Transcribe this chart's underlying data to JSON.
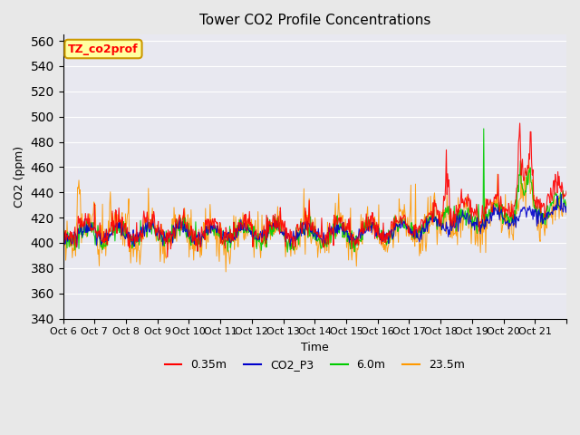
{
  "title": "Tower CO2 Profile Concentrations",
  "xlabel": "Time",
  "ylabel": "CO2 (ppm)",
  "ylim": [
    340,
    565
  ],
  "yticks": [
    340,
    360,
    380,
    400,
    420,
    440,
    460,
    480,
    500,
    520,
    540,
    560
  ],
  "n_days": 16,
  "n_per_day": 48,
  "series_colors": {
    "0.35m": "#ff0000",
    "CO2_P3": "#0000cc",
    "6.0m": "#00cc00",
    "23.5m": "#ff9900"
  },
  "legend_label_box": "TZ_co2prof",
  "legend_box_facecolor": "#ffffa0",
  "legend_box_edgecolor": "#cc9900",
  "tick_labels": [
    "Oct 6",
    "Oct 7",
    "Oct 8",
    "Oct 9",
    "Oct 10",
    "Oct 11",
    "Oct 12",
    "Oct 13",
    "Oct 14",
    "Oct 15",
    "Oct 16",
    "Oct 17",
    "Oct 18",
    "Oct 19",
    "Oct 20",
    "Oct 21",
    ""
  ]
}
